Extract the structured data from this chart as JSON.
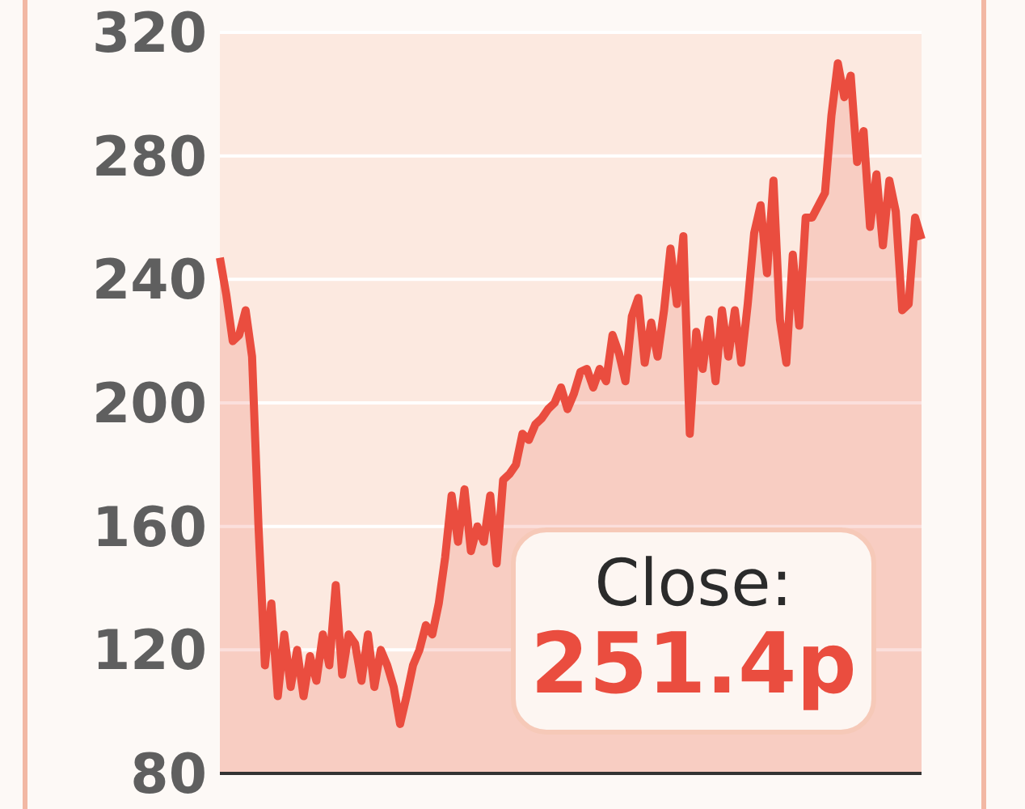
{
  "chart_data": {
    "type": "area",
    "categories": [
      null,
      null,
      null,
      null,
      null,
      null,
      null,
      null,
      null,
      null,
      null,
      null,
      null,
      null,
      null,
      null,
      null,
      null,
      null,
      null,
      null,
      null,
      null,
      null,
      null,
      null,
      null,
      null,
      null,
      null,
      null,
      null,
      null,
      null,
      null,
      null,
      null,
      null,
      null,
      null,
      null,
      null,
      null,
      null,
      null,
      null,
      null,
      null,
      null,
      null,
      null,
      null,
      null,
      null,
      null,
      null,
      null,
      null,
      null,
      null,
      null,
      null,
      null,
      null,
      null,
      null,
      null,
      null,
      null,
      null,
      null,
      null,
      null,
      null,
      null,
      null,
      null,
      null,
      null,
      null,
      null,
      null,
      null,
      null,
      null,
      null,
      null,
      null,
      null,
      null,
      null,
      null,
      null,
      null,
      null,
      null,
      null,
      null,
      null,
      null,
      null,
      null,
      null,
      null,
      null,
      null,
      null,
      null,
      null,
      null
    ],
    "series": [
      {
        "color": "#ea4d3f",
        "values": [
          247,
          235,
          220,
          222,
          230,
          215,
          160,
          115,
          135,
          105,
          125,
          108,
          120,
          105,
          118,
          110,
          125,
          115,
          141,
          112,
          125,
          122,
          110,
          125,
          108,
          120,
          115,
          108,
          96,
          105,
          115,
          120,
          128,
          125,
          135,
          150,
          170,
          155,
          172,
          152,
          160,
          155,
          170,
          148,
          175,
          177,
          180,
          190,
          188,
          193,
          195,
          198,
          200,
          205,
          198,
          203,
          210,
          211,
          205,
          211,
          207,
          222,
          216,
          207,
          228,
          234,
          213,
          226,
          215,
          230,
          250,
          232,
          254,
          190,
          223,
          211,
          227,
          207,
          230,
          215,
          230,
          213,
          232,
          255,
          264,
          242,
          272,
          227,
          213,
          248,
          225,
          260,
          260,
          264,
          268,
          293,
          310,
          299,
          306,
          278,
          288,
          257,
          274,
          251,
          272,
          262,
          230,
          232,
          260,
          253
        ]
      }
    ],
    "ylim": [
      80,
      320
    ],
    "yticks": [
      80,
      120,
      160,
      200,
      240,
      280,
      320
    ],
    "grid": "y",
    "tick_labels": "y",
    "annotations": [
      "Close:",
      "251.4p"
    ]
  }
}
